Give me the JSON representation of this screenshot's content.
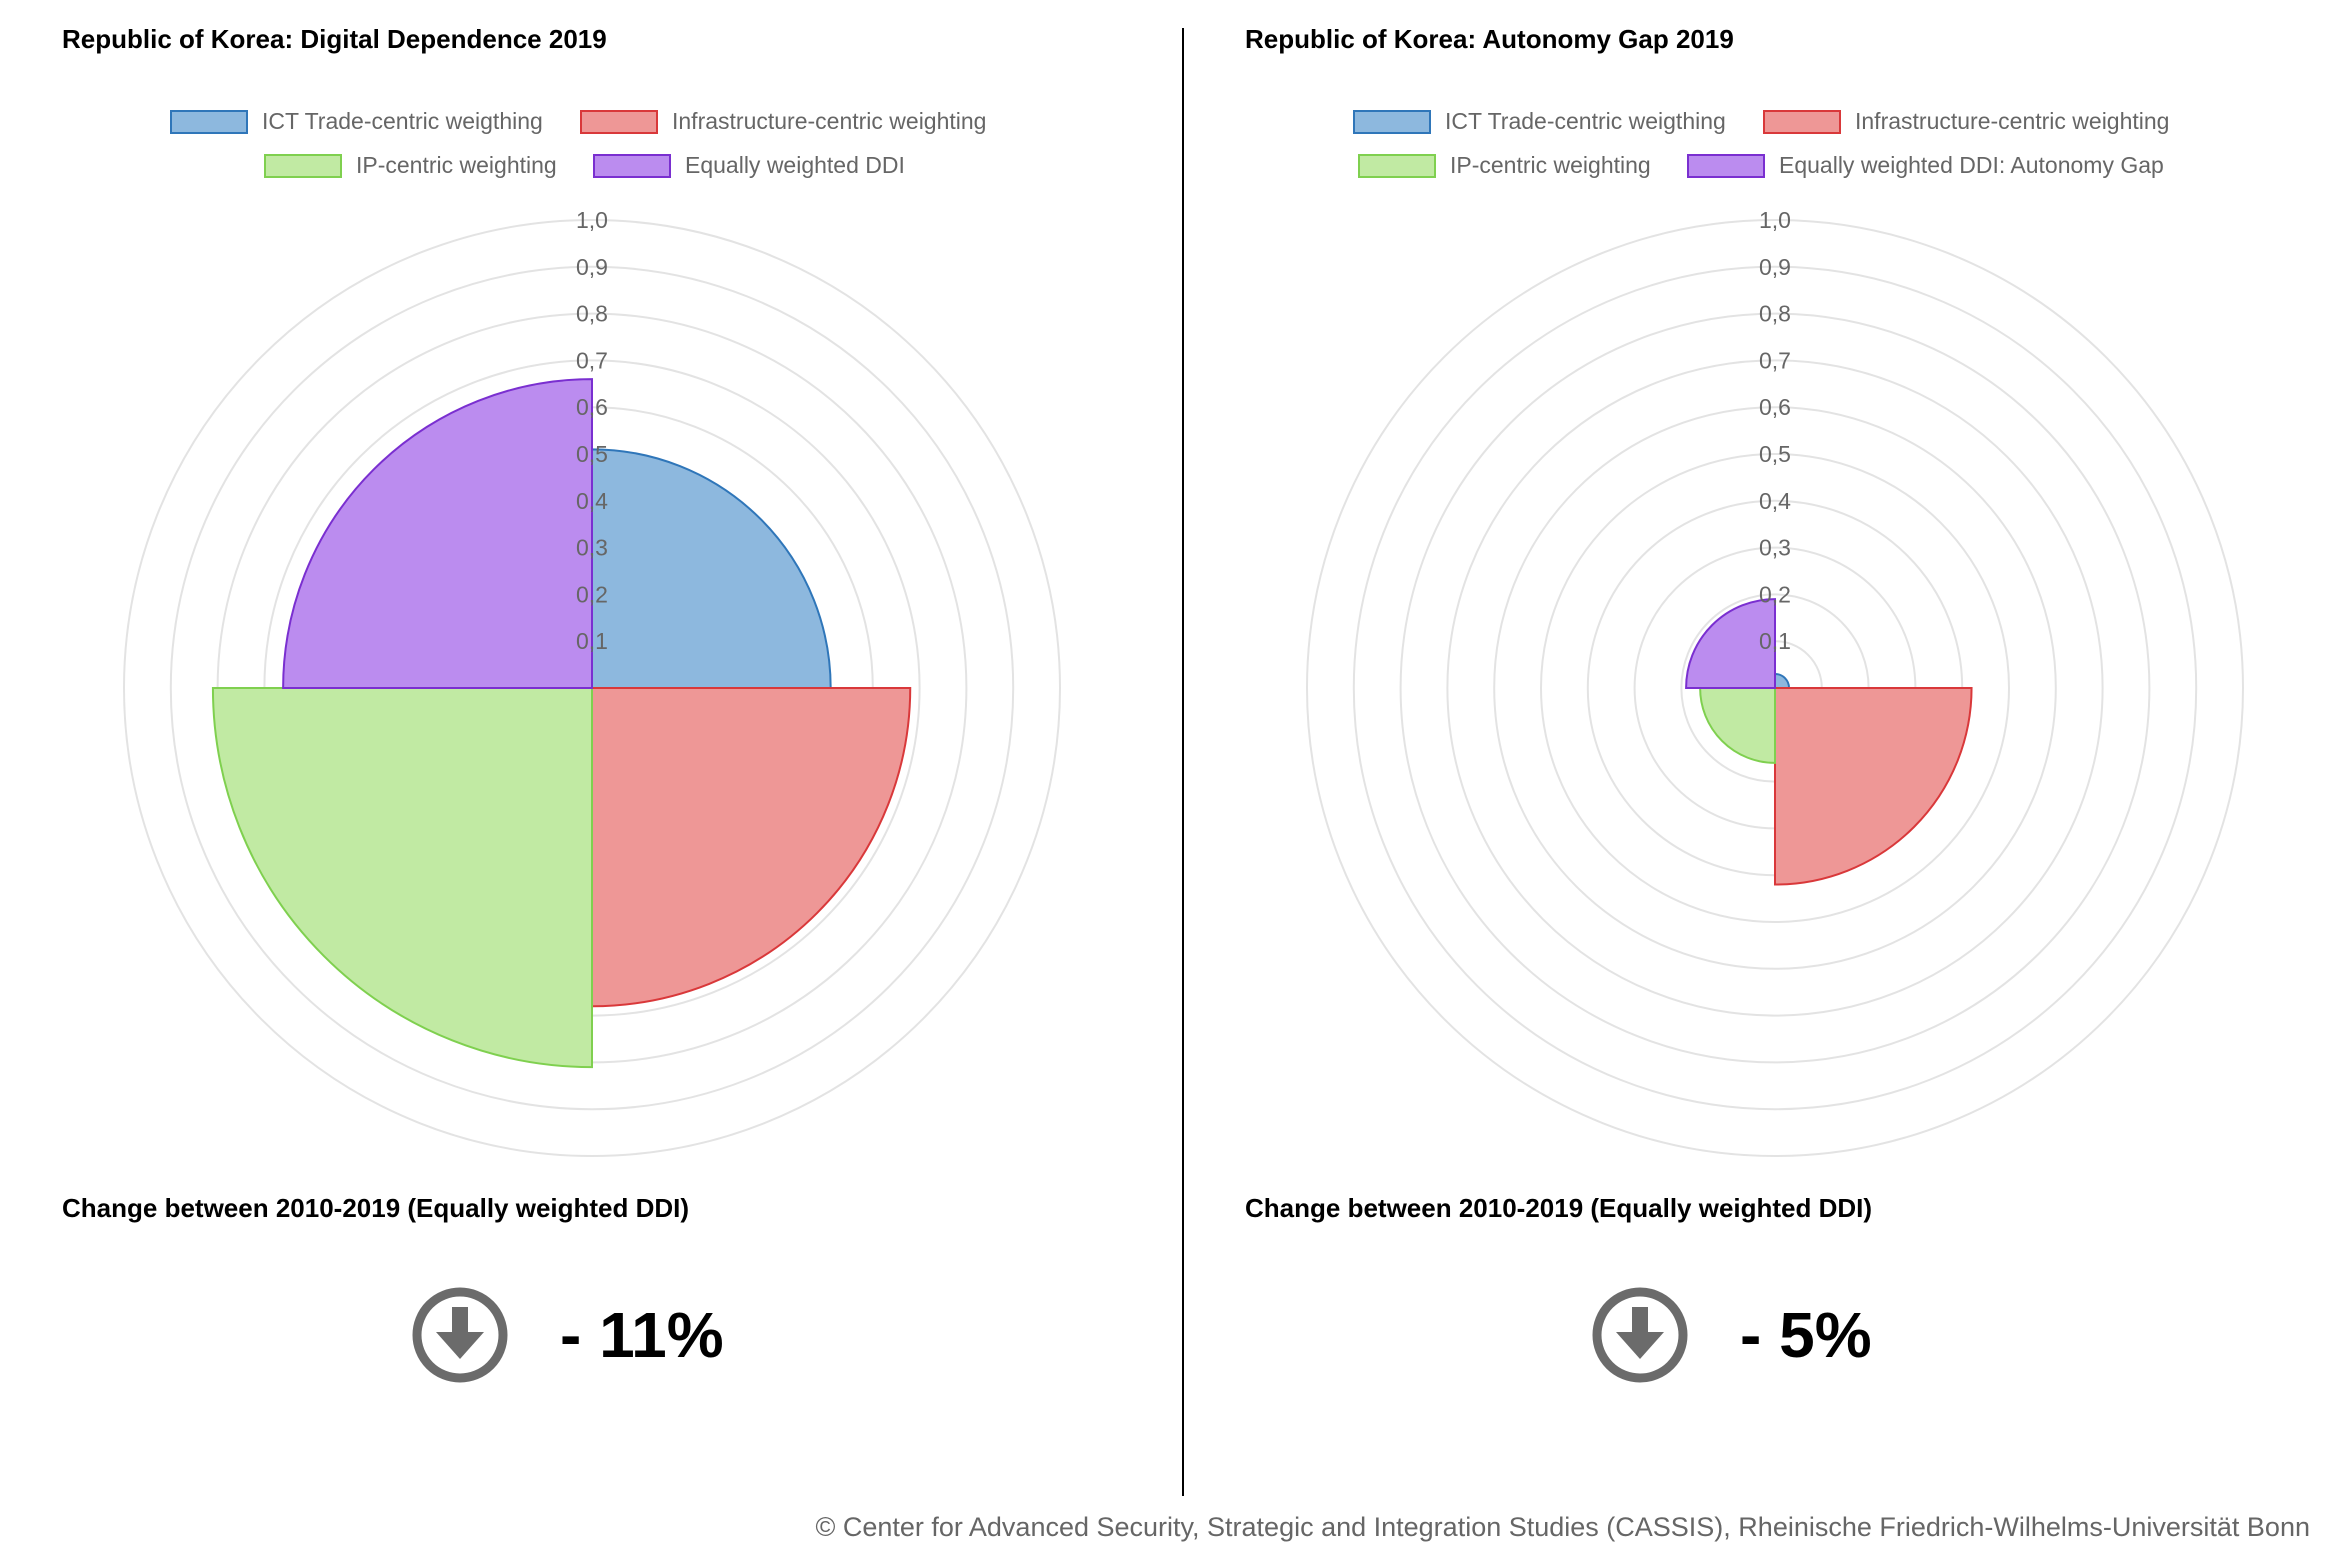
{
  "left": {
    "title": "Republic of Korea: Digital Dependence 2019",
    "legend": [
      {
        "label": "ICT Trade-centric weigthing",
        "fill": "#8db8de",
        "stroke": "#2f76b9"
      },
      {
        "label": "Infrastructure-centric weighting",
        "fill": "#ee9796",
        "stroke": "#d9383a"
      },
      {
        "label": "IP-centric weighting",
        "fill": "#c1eaa3",
        "stroke": "#7fd04f"
      },
      {
        "label": "Equally weighted DDI",
        "fill": "#bb8cef",
        "stroke": "#7a2fd0"
      }
    ],
    "change_title": "Change between 2010-2019 (Equally weighted DDI)",
    "change_value": "- 11%",
    "change_icon": "arrow-down-circle-icon"
  },
  "right": {
    "title": "Republic of Korea: Autonomy Gap 2019",
    "legend": [
      {
        "label": "ICT Trade-centric weigthing",
        "fill": "#8db8de",
        "stroke": "#2f76b9"
      },
      {
        "label": "Infrastructure-centric weighting",
        "fill": "#ee9796",
        "stroke": "#d9383a"
      },
      {
        "label": "IP-centric weighting",
        "fill": "#c1eaa3",
        "stroke": "#7fd04f"
      },
      {
        "label": "Equally weighted DDI: Autonomy Gap",
        "fill": "#bb8cef",
        "stroke": "#7a2fd0"
      }
    ],
    "change_title": "Change between 2010-2019 (Equally weighted DDI)",
    "change_value": "- 5%",
    "change_icon": "arrow-down-circle-icon"
  },
  "chart_data": [
    {
      "type": "polarArea",
      "title": "Republic of Korea: Digital Dependence 2019",
      "categories": [
        "ICT Trade-centric weigthing",
        "Infrastructure-centric weighting",
        "IP-centric weighting",
        "Equally weighted DDI"
      ],
      "values": [
        0.51,
        0.68,
        0.81,
        0.66
      ],
      "rlim": [
        0,
        1.0
      ],
      "ticks": [
        "0,1",
        "0,2",
        "0,3",
        "0,4",
        "0,5",
        "0,6",
        "0,7",
        "0,8",
        "0,9",
        "1,0"
      ],
      "grid": true,
      "legend_position": "top"
    },
    {
      "type": "polarArea",
      "title": "Republic of Korea: Autonomy Gap 2019",
      "categories": [
        "ICT Trade-centric weigthing",
        "Infrastructure-centric weighting",
        "IP-centric weighting",
        "Equally weighted DDI: Autonomy Gap"
      ],
      "values": [
        0.03,
        0.42,
        0.16,
        0.19
      ],
      "rlim": [
        0,
        1.0
      ],
      "ticks": [
        "0,1",
        "0,2",
        "0,3",
        "0,4",
        "0,5",
        "0,6",
        "0,7",
        "0,8",
        "0,9",
        "1,0"
      ],
      "grid": true,
      "legend_position": "top"
    }
  ],
  "footer": "© Center for Advanced Security, Strategic and Integration Studies (CASSIS), Rheinische Friedrich-Wilhelms-Universität Bonn"
}
